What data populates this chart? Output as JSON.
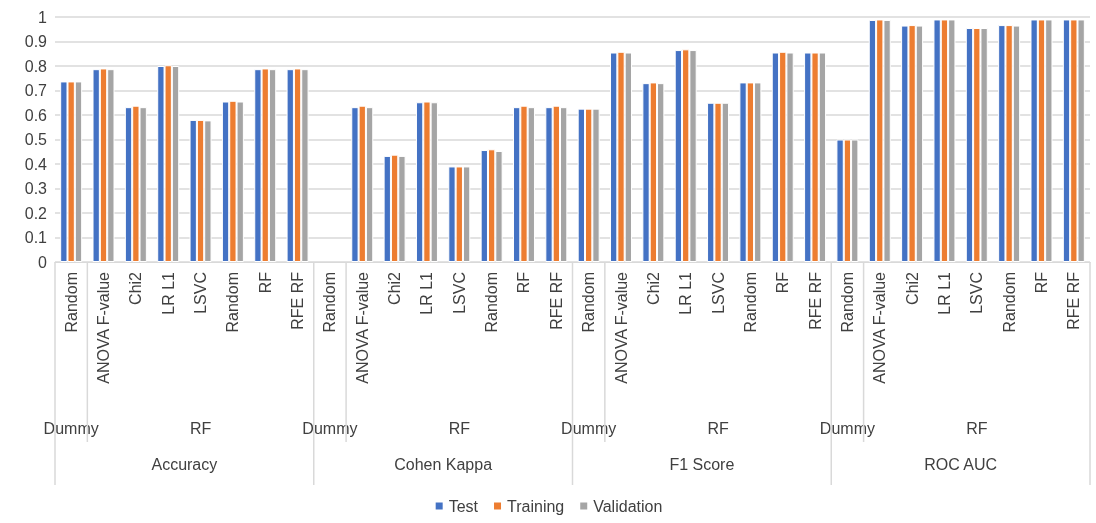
{
  "chart_data": {
    "type": "bar",
    "categories": [
      "Random",
      "ANOVA F-value",
      "Chi2",
      "LR L1",
      "LSVC",
      "Random",
      "RF",
      "RFE RF",
      "Random",
      "ANOVA F-value",
      "Chi2",
      "LR L1",
      "LSVC",
      "Random",
      "RF",
      "RFE RF",
      "Random",
      "ANOVA F-value",
      "Chi2",
      "LR L1",
      "LSVC",
      "Random",
      "RF",
      "RFE RF",
      "Random",
      "ANOVA F-value",
      "Chi2",
      "LR L1",
      "LSVC",
      "Random",
      "RF",
      "RFE RF"
    ],
    "series": [
      {
        "name": "Test",
        "color": "#4472c4",
        "values": [
          0.737,
          0.787,
          0.632,
          0.8,
          0.58,
          0.655,
          0.787,
          0.787,
          0,
          0.632,
          0.433,
          0.652,
          0.39,
          0.457,
          0.632,
          0.632,
          0.626,
          0.855,
          0.73,
          0.865,
          0.65,
          0.733,
          0.855,
          0.855,
          0.5,
          0.988,
          0.965,
          0.99,
          0.955,
          0.967,
          0.99,
          0.99
        ]
      },
      {
        "name": "Training",
        "color": "#ed7d31",
        "values": [
          0.737,
          0.79,
          0.638,
          0.803,
          0.58,
          0.658,
          0.79,
          0.79,
          0,
          0.638,
          0.438,
          0.655,
          0.39,
          0.46,
          0.638,
          0.638,
          0.626,
          0.858,
          0.733,
          0.868,
          0.65,
          0.733,
          0.858,
          0.855,
          0.5,
          0.99,
          0.967,
          0.99,
          0.955,
          0.967,
          0.99,
          0.99
        ]
      },
      {
        "name": "Validation",
        "color": "#a5a5a5",
        "values": [
          0.737,
          0.787,
          0.632,
          0.8,
          0.578,
          0.655,
          0.787,
          0.787,
          0,
          0.632,
          0.433,
          0.652,
          0.39,
          0.453,
          0.632,
          0.632,
          0.626,
          0.855,
          0.73,
          0.865,
          0.65,
          0.733,
          0.855,
          0.855,
          0.5,
          0.988,
          0.965,
          0.99,
          0.955,
          0.965,
          0.99,
          0.99
        ]
      }
    ],
    "ylim": [
      0,
      1
    ],
    "yticks": [
      0,
      0.1,
      0.2,
      0.3,
      0.4,
      0.5,
      0.6,
      0.7,
      0.8,
      0.9,
      1
    ],
    "annotations": [
      "Dummy",
      "RF",
      "Dummy",
      "RF",
      "Dummy",
      "RF",
      "Dummy",
      "RF",
      "Accuracy",
      "Cohen Kappa",
      "F1 Score",
      "ROC AUC"
    ],
    "grid": "y",
    "legend": "bottom"
  }
}
